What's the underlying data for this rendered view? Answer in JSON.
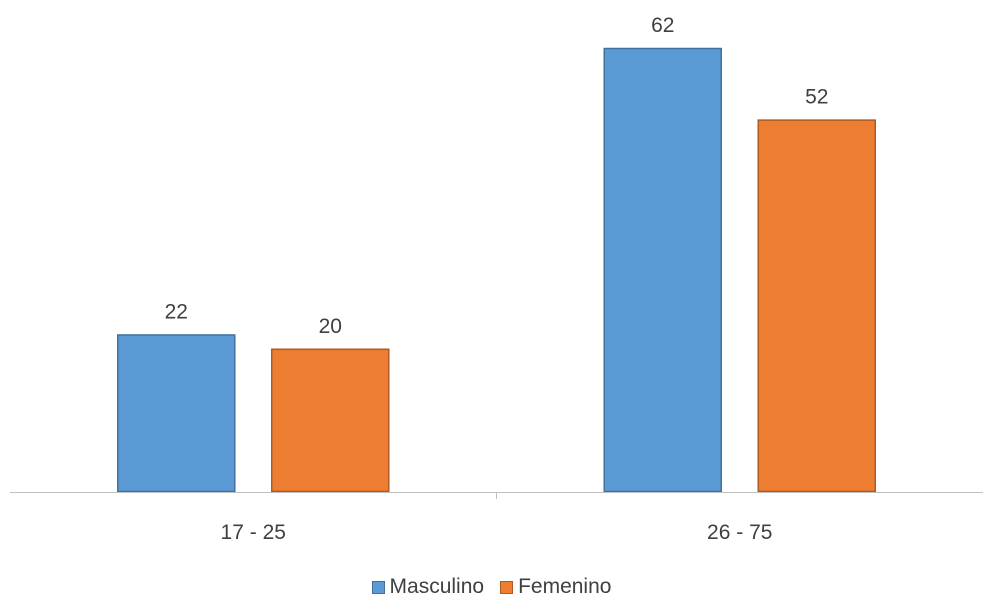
{
  "chart_data": {
    "type": "bar",
    "categories": [
      "17 - 25",
      "26 - 75"
    ],
    "series": [
      {
        "name": "Masculino",
        "values": [
          22,
          62
        ],
        "color": "#5B9BD5",
        "border": "#41719C"
      },
      {
        "name": "Femenino",
        "values": [
          20,
          52
        ],
        "color": "#ED7D31",
        "border": "#AE5A21"
      }
    ],
    "title": "",
    "xlabel": "",
    "ylabel": "",
    "ylim": [
      0,
      62
    ],
    "grid": false,
    "legend_position": "bottom",
    "data_labels": true,
    "axis_color": "#BFBFBF",
    "label_color": "#404040"
  }
}
